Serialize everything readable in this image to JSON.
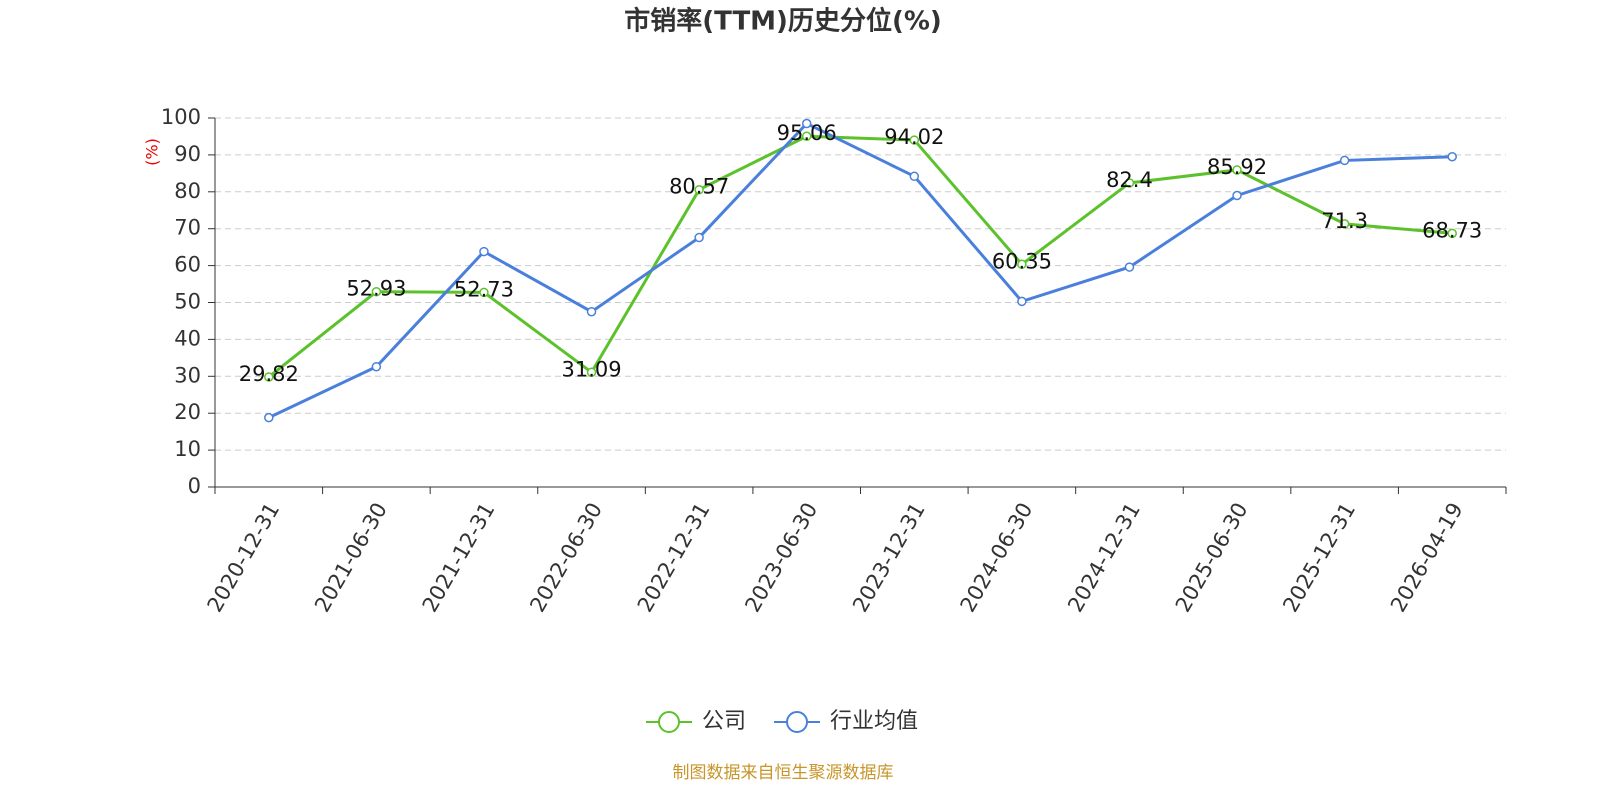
{
  "chart_data": {
    "type": "line",
    "title": "市销率(TTM)历史分位(%)",
    "y_label": "(%)",
    "categories": [
      "2020-12-31",
      "2021-06-30",
      "2021-12-31",
      "2022-06-30",
      "2022-12-31",
      "2023-06-30",
      "2023-12-31",
      "2024-06-30",
      "2024-12-31",
      "2025-06-30",
      "2025-12-31",
      "2026-04-19"
    ],
    "series": [
      {
        "name": "公司",
        "color": "#5cc22c",
        "show_labels": true,
        "values": [
          29.82,
          52.93,
          52.73,
          31.09,
          80.57,
          95.06,
          94.02,
          60.35,
          82.4,
          85.92,
          71.3,
          68.73
        ]
      },
      {
        "name": "行业均值",
        "color": "#4a80dc",
        "show_labels": false,
        "values": [
          18.8,
          32.6,
          63.8,
          47.5,
          67.6,
          98.5,
          84.2,
          50.3,
          59.6,
          79.0,
          88.5,
          89.5
        ]
      }
    ],
    "ylim": [
      0,
      100
    ],
    "yticks": [
      0,
      10,
      20,
      30,
      40,
      50,
      60,
      70,
      80,
      90,
      100
    ],
    "grid": true,
    "legend": "bottom",
    "source": "制图数据来自恒生聚源数据库"
  }
}
